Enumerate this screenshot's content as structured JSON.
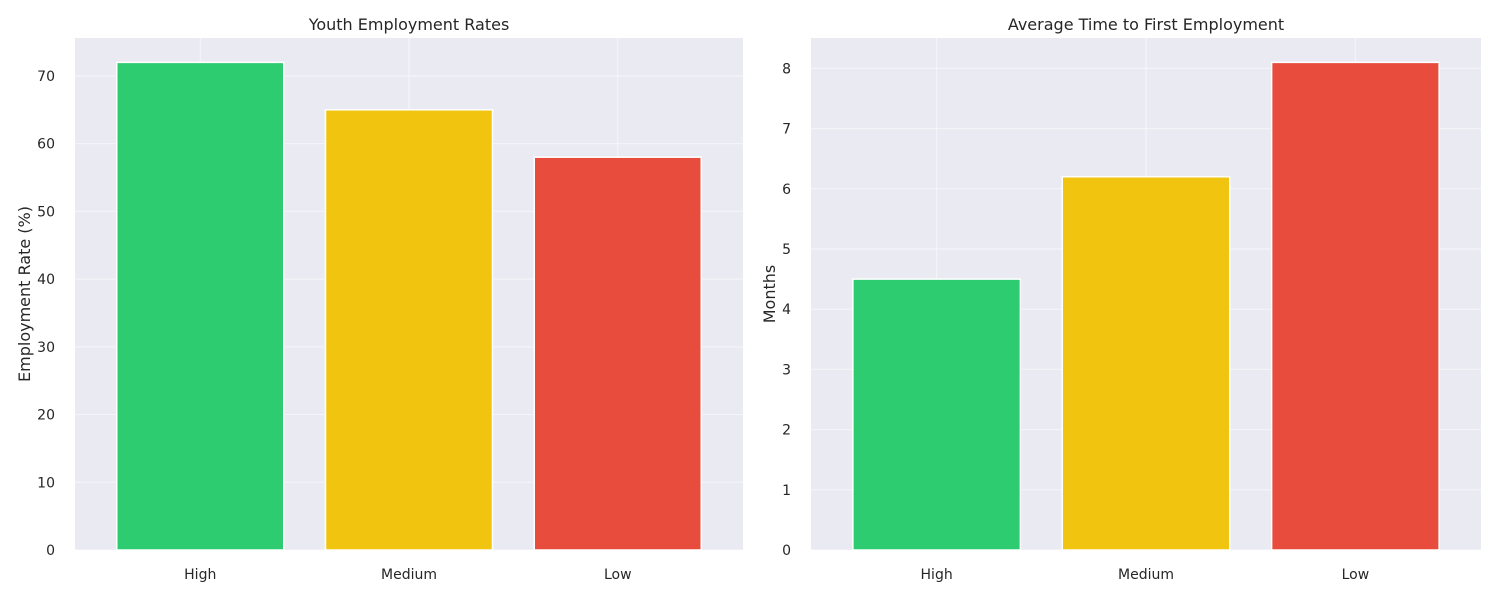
{
  "chart_data": [
    {
      "type": "bar",
      "title": "Youth Employment Rates",
      "xlabel": "",
      "ylabel": "Employment Rate (%)",
      "categories": [
        "High",
        "Medium",
        "Low"
      ],
      "values": [
        72,
        65,
        58
      ],
      "colors": [
        "#2ecc71",
        "#f1c40f",
        "#e74c3c"
      ],
      "ylim": [
        0,
        75.6
      ],
      "yticks": [
        0,
        10,
        20,
        30,
        40,
        50,
        60,
        70
      ],
      "grid": true
    },
    {
      "type": "bar",
      "title": "Average Time to First Employment",
      "xlabel": "",
      "ylabel": "Months",
      "categories": [
        "High",
        "Medium",
        "Low"
      ],
      "values": [
        4.5,
        6.2,
        8.1
      ],
      "colors": [
        "#2ecc71",
        "#f1c40f",
        "#e74c3c"
      ],
      "ylim": [
        0,
        8.505
      ],
      "yticks": [
        0,
        1,
        2,
        3,
        4,
        5,
        6,
        7,
        8
      ],
      "grid": true
    }
  ]
}
